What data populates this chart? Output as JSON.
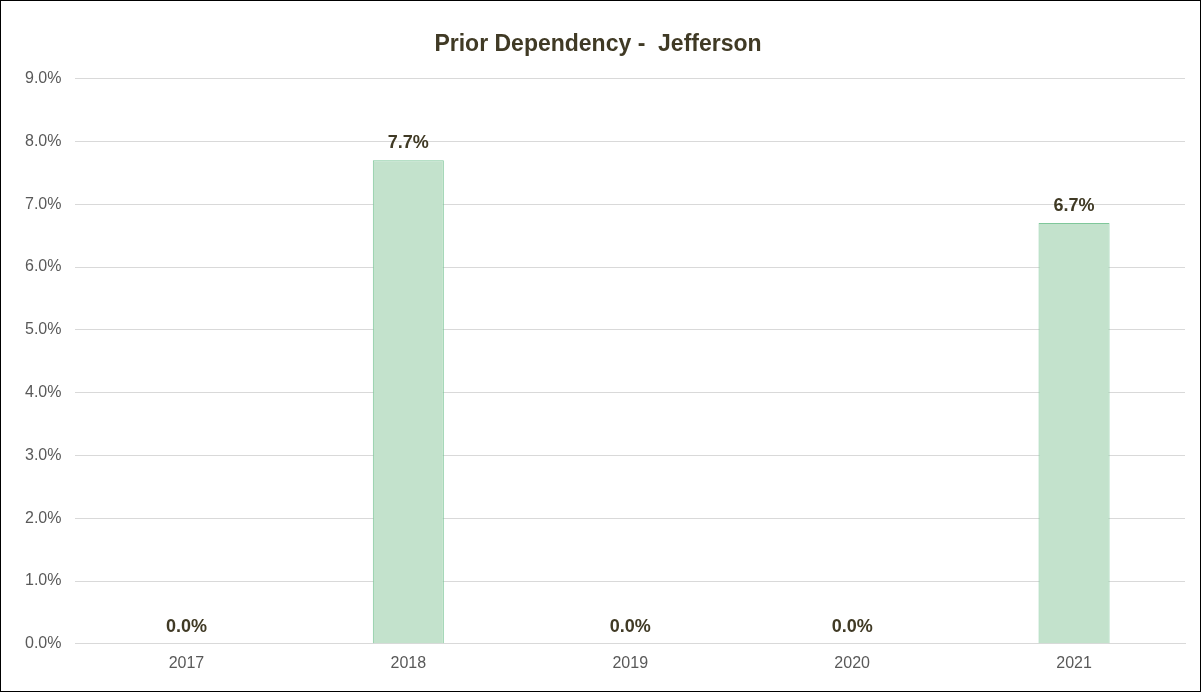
{
  "chart_data": {
    "type": "bar",
    "title": "Prior Dependency -  Jefferson",
    "categories": [
      "2017",
      "2018",
      "2019",
      "2020",
      "2021"
    ],
    "values": [
      0,
      7.7,
      0,
      0,
      6.7
    ],
    "value_labels": [
      "0.0%",
      "7.7%",
      "0.0%",
      "0.0%",
      "6.7%"
    ],
    "color": "#c3e2cc",
    "ylim": [
      0,
      9
    ],
    "yticks": [
      {
        "value": 0,
        "label": "0.0%"
      },
      {
        "value": 1,
        "label": "1.0%"
      },
      {
        "value": 2,
        "label": "2.0%"
      },
      {
        "value": 3,
        "label": "3.0%"
      },
      {
        "value": 4,
        "label": "4.0%"
      },
      {
        "value": 5,
        "label": "5.0%"
      },
      {
        "value": 6,
        "label": "6.0%"
      },
      {
        "value": 7,
        "label": "7.0%"
      },
      {
        "value": 8,
        "label": "8.0%"
      },
      {
        "value": 9,
        "label": "9.0%"
      }
    ],
    "grid": "y",
    "legend": false
  }
}
